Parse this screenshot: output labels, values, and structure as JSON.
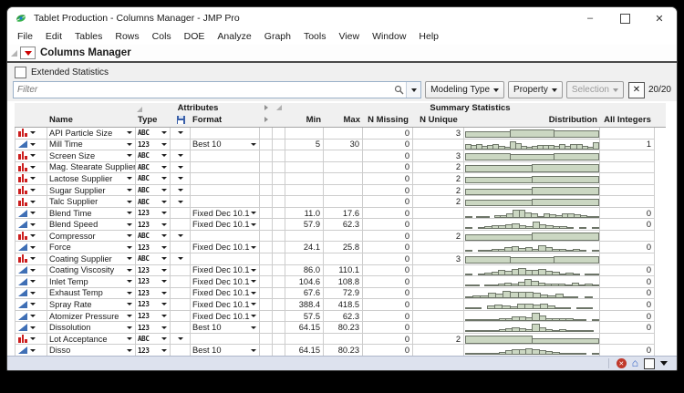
{
  "window": {
    "title": "Tablet Production - Columns Manager - JMP Pro",
    "minimize": "–",
    "close": "✕"
  },
  "menu": {
    "items": [
      "File",
      "Edit",
      "Tables",
      "Rows",
      "Cols",
      "DOE",
      "Analyze",
      "Graph",
      "Tools",
      "View",
      "Window",
      "Help"
    ]
  },
  "report": {
    "title": "Columns Manager"
  },
  "toolbar": {
    "extended_statistics_label": "Extended Statistics",
    "extended_statistics_checked": false,
    "filter_placeholder": "Filter",
    "buttons": [
      {
        "label": "Modeling Type",
        "enabled": true
      },
      {
        "label": "Property",
        "enabled": true
      },
      {
        "label": "Selection",
        "enabled": false
      }
    ],
    "clear_label": "✕",
    "count": "20/20"
  },
  "table": {
    "groups": {
      "attributes": "Attributes",
      "summary": "Summary Statistics"
    },
    "columns": {
      "name": "Name",
      "type": "Type",
      "format": "Format",
      "min": "Min",
      "max": "Max",
      "n_missing": "N Missing",
      "n_unique": "N Unique",
      "distribution": "Distribution",
      "all_integers": "All Integers"
    },
    "rows": [
      {
        "name": "API Particle Size",
        "modeling": "nominal",
        "type": "ABC",
        "char_menu": true,
        "format": "",
        "min": "",
        "max": "",
        "n_missing": "0",
        "n_unique": "3",
        "all_integers": "",
        "dist": {
          "kind": "category",
          "heights": [
            0.7,
            0.85,
            0.72
          ]
        }
      },
      {
        "name": "Mill Time",
        "modeling": "continuous",
        "type": "123",
        "char_menu": false,
        "format": "Best 10",
        "min": "5",
        "max": "30",
        "n_missing": "0",
        "n_unique": "",
        "all_integers": "1",
        "dist": {
          "kind": "histogram",
          "heights": [
            0.55,
            0.4,
            0.55,
            0.3,
            0.45,
            0.5,
            0.3,
            0.22,
            0.8,
            0.6,
            0.3,
            0.22,
            0.35,
            0.4,
            0.45,
            0.4,
            0.35,
            0.5,
            0.3,
            0.5,
            0.55,
            0.3,
            0.25,
            0.75
          ]
        }
      },
      {
        "name": "Screen Size",
        "modeling": "nominal",
        "type": "ABC",
        "char_menu": true,
        "format": "",
        "min": "",
        "max": "",
        "n_missing": "0",
        "n_unique": "3",
        "all_integers": "",
        "dist": {
          "kind": "category",
          "heights": [
            0.75,
            0.65,
            0.8
          ]
        }
      },
      {
        "name": "Mag. Stearate Supplier",
        "modeling": "nominal",
        "type": "ABC",
        "char_menu": true,
        "format": "",
        "min": "",
        "max": "",
        "n_missing": "0",
        "n_unique": "2",
        "all_integers": "",
        "dist": {
          "kind": "category",
          "heights": [
            0.7,
            0.8
          ]
        }
      },
      {
        "name": "Lactose Supplier",
        "modeling": "nominal",
        "type": "ABC",
        "char_menu": true,
        "format": "",
        "min": "",
        "max": "",
        "n_missing": "0",
        "n_unique": "2",
        "all_integers": "",
        "dist": {
          "kind": "category",
          "heights": [
            0.7,
            0.82
          ]
        }
      },
      {
        "name": "Sugar Supplier",
        "modeling": "nominal",
        "type": "ABC",
        "char_menu": true,
        "format": "",
        "min": "",
        "max": "",
        "n_missing": "0",
        "n_unique": "2",
        "all_integers": "",
        "dist": {
          "kind": "category",
          "heights": [
            0.65,
            0.85
          ]
        }
      },
      {
        "name": "Talc Supplier",
        "modeling": "nominal",
        "type": "ABC",
        "char_menu": true,
        "format": "",
        "min": "",
        "max": "",
        "n_missing": "0",
        "n_unique": "2",
        "all_integers": "",
        "dist": {
          "kind": "category",
          "heights": [
            0.7,
            0.8
          ]
        }
      },
      {
        "name": "Blend Time",
        "modeling": "continuous",
        "type": "123",
        "char_menu": false,
        "format": "Fixed Dec 10.1",
        "min": "11.0",
        "max": "17.6",
        "n_missing": "0",
        "n_unique": "",
        "all_integers": "0",
        "dist": {
          "kind": "histogram",
          "heights": [
            0.15,
            0,
            0.12,
            0.15,
            0,
            0.28,
            0.3,
            0.5,
            0.85,
            0.8,
            0.55,
            0.45,
            0.22,
            0.5,
            0.35,
            0.3,
            0.45,
            0.5,
            0.4,
            0.25,
            0.12,
            0.22
          ]
        }
      },
      {
        "name": "Blend Speed",
        "modeling": "continuous",
        "type": "123",
        "char_menu": false,
        "format": "Fixed Dec 10.1",
        "min": "57.9",
        "max": "62.3",
        "n_missing": "0",
        "n_unique": "",
        "all_integers": "0",
        "dist": {
          "kind": "histogram",
          "heights": [
            0.12,
            0,
            0.22,
            0.3,
            0.4,
            0.45,
            0.55,
            0.6,
            0.45,
            0.35,
            0.8,
            0.55,
            0.4,
            0.32,
            0.35,
            0.15,
            0,
            0.1,
            0,
            0.12
          ]
        }
      },
      {
        "name": "Compressor",
        "modeling": "nominal",
        "type": "ABC",
        "char_menu": true,
        "format": "",
        "min": "",
        "max": "",
        "n_missing": "0",
        "n_unique": "2",
        "all_integers": "",
        "dist": {
          "kind": "category",
          "heights": [
            0.65,
            0.85
          ]
        }
      },
      {
        "name": "Force",
        "modeling": "continuous",
        "type": "123",
        "char_menu": false,
        "format": "Fixed Dec 10.1",
        "min": "24.1",
        "max": "25.8",
        "n_missing": "0",
        "n_unique": "",
        "all_integers": "0",
        "dist": {
          "kind": "histogram",
          "heights": [
            0.12,
            0,
            0.15,
            0.15,
            0.3,
            0.3,
            0.55,
            0.6,
            0.42,
            0.5,
            0.3,
            0.75,
            0.5,
            0.32,
            0.35,
            0.25,
            0.3,
            0.15,
            0,
            0.12
          ]
        }
      },
      {
        "name": "Coating Supplier",
        "modeling": "nominal",
        "type": "ABC",
        "char_menu": true,
        "format": "",
        "min": "",
        "max": "",
        "n_missing": "0",
        "n_unique": "3",
        "all_integers": "",
        "dist": {
          "kind": "category",
          "heights": [
            0.8,
            0.7,
            0.75
          ]
        }
      },
      {
        "name": "Coating Viscosity",
        "modeling": "continuous",
        "type": "123",
        "char_menu": false,
        "format": "Fixed Dec 10.1",
        "min": "86.0",
        "max": "110.1",
        "n_missing": "0",
        "n_unique": "",
        "all_integers": "0",
        "dist": {
          "kind": "histogram",
          "heights": [
            0.1,
            0,
            0.15,
            0.2,
            0.35,
            0.5,
            0.45,
            0.6,
            0.7,
            0.55,
            0.5,
            0.6,
            0.42,
            0.3,
            0.15,
            0.2,
            0.15,
            0,
            0.1,
            0.12
          ]
        }
      },
      {
        "name": "Inlet Temp",
        "modeling": "continuous",
        "type": "123",
        "char_menu": false,
        "format": "Fixed Dec 10.1",
        "min": "104.6",
        "max": "108.8",
        "n_missing": "0",
        "n_unique": "",
        "all_integers": "0",
        "dist": {
          "kind": "histogram",
          "heights": [
            0.1,
            0.1,
            0,
            0.2,
            0.15,
            0.3,
            0.35,
            0.3,
            0.5,
            0.75,
            0.6,
            0.4,
            0.3,
            0.3,
            0.3,
            0.25,
            0.35,
            0.2,
            0.3,
            0.15
          ]
        }
      },
      {
        "name": "Exhaust Temp",
        "modeling": "continuous",
        "type": "123",
        "char_menu": false,
        "format": "Fixed Dec 10.1",
        "min": "67.6",
        "max": "72.9",
        "n_missing": "0",
        "n_unique": "",
        "all_integers": "0",
        "dist": {
          "kind": "histogram",
          "heights": [
            0.15,
            0.25,
            0.3,
            0.5,
            0.45,
            0.7,
            0.65,
            0.6,
            0.65,
            0.5,
            0.35,
            0.3,
            0.4,
            0.2,
            0.1,
            0,
            0.15,
            0
          ]
        }
      },
      {
        "name": "Spray Rate",
        "modeling": "continuous",
        "type": "123",
        "char_menu": false,
        "format": "Fixed Dec 10.1",
        "min": "388.4",
        "max": "418.5",
        "n_missing": "0",
        "n_unique": "",
        "all_integers": "0",
        "dist": {
          "kind": "histogram",
          "heights": [
            0.2,
            0.1,
            0,
            0.4,
            0.5,
            0.45,
            0.35,
            0.55,
            0.6,
            0.5,
            0.55,
            0.4,
            0.2,
            0.1,
            0,
            0.15,
            0.1,
            0
          ]
        }
      },
      {
        "name": "Atomizer Pressure",
        "modeling": "continuous",
        "type": "123",
        "char_menu": false,
        "format": "Fixed Dec 10.1",
        "min": "57.5",
        "max": "62.3",
        "n_missing": "0",
        "n_unique": "",
        "all_integers": "0",
        "dist": {
          "kind": "histogram",
          "heights": [
            0.1,
            0.15,
            0.1,
            0.2,
            0.2,
            0.3,
            0.3,
            0.45,
            0.5,
            0.35,
            0.8,
            0.55,
            0.3,
            0.25,
            0.3,
            0.25,
            0.2,
            0.1,
            0,
            0.1
          ]
        }
      },
      {
        "name": "Dissolution",
        "modeling": "continuous",
        "type": "123",
        "char_menu": false,
        "format": "Best 10",
        "min": "64.15",
        "max": "80.23",
        "n_missing": "0",
        "n_unique": "",
        "all_integers": "0",
        "dist": {
          "kind": "histogram",
          "heights": [
            0.1,
            0.15,
            0.1,
            0.15,
            0.2,
            0.3,
            0.4,
            0.5,
            0.45,
            0.3,
            0.85,
            0.5,
            0.3,
            0.25,
            0.3,
            0.2,
            0.15,
            0.1,
            0.15,
            0
          ]
        }
      },
      {
        "name": "Lot Acceptance",
        "modeling": "nominal",
        "type": "ABC",
        "char_menu": true,
        "format": "",
        "min": "",
        "max": "",
        "n_missing": "0",
        "n_unique": "2",
        "all_integers": "",
        "dist": {
          "kind": "category",
          "heights": [
            0.85,
            0.6
          ]
        }
      },
      {
        "name": "Disso",
        "modeling": "continuous",
        "type": "123",
        "char_menu": false,
        "format": "Best 10",
        "min": "64.15",
        "max": "80.23",
        "n_missing": "0",
        "n_unique": "",
        "all_integers": "0",
        "dist": {
          "kind": "histogram",
          "heights": [
            0.15,
            0.1,
            0.2,
            0.15,
            0.1,
            0.35,
            0.5,
            0.6,
            0.65,
            0.7,
            0.6,
            0.5,
            0.4,
            0.3,
            0.2,
            0.25,
            0.1,
            0.15,
            0,
            0.1
          ]
        }
      }
    ]
  },
  "colors": {
    "histogram_fill": "#cbd7c2",
    "histogram_border": "#6d7568",
    "nominal_icon": "#cc1f1f",
    "continuous_icon": "#3f6fb5",
    "red_triangle": "#cc0000",
    "statusbar_bg": "#dde2ee"
  }
}
